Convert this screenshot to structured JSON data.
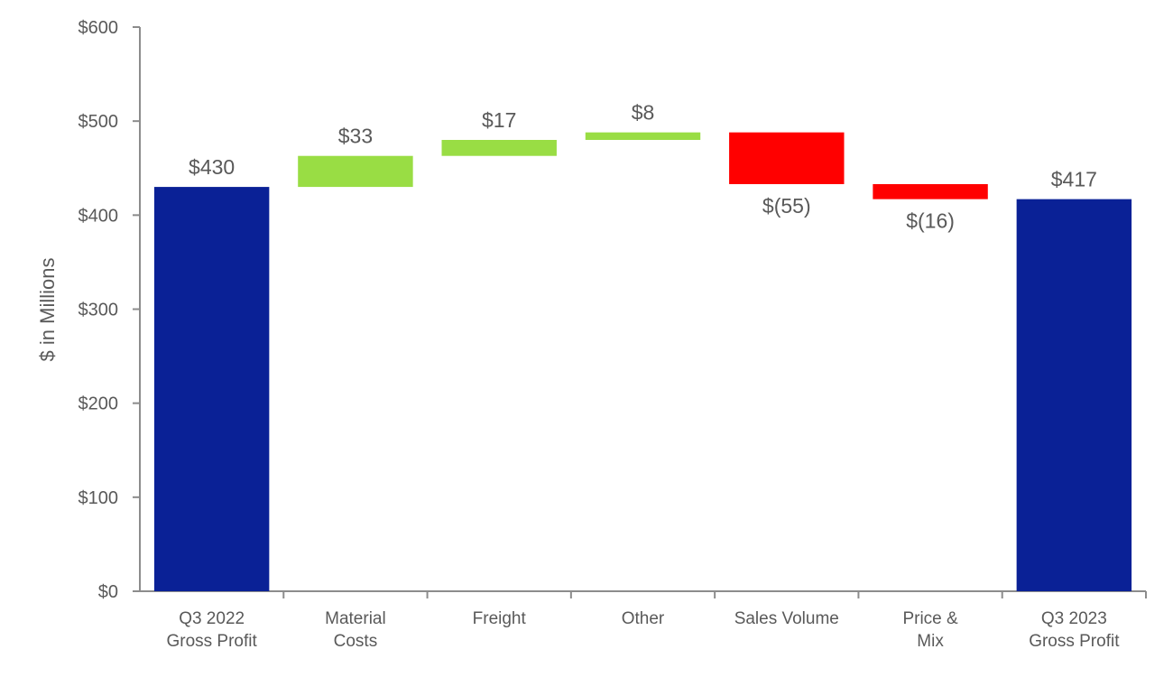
{
  "chart_data": {
    "type": "bar",
    "subtype": "waterfall",
    "title": "",
    "xlabel": "",
    "ylabel": "$ in Millions",
    "ylim": [
      0,
      600
    ],
    "yticks": [
      0,
      100,
      200,
      300,
      400,
      500,
      600
    ],
    "ytick_labels": [
      "$0",
      "$100",
      "$200",
      "$300",
      "$400",
      "$500",
      "$600"
    ],
    "categories": [
      [
        "Q3 2022",
        "Gross Profit"
      ],
      [
        "Material",
        "Costs"
      ],
      [
        "Freight"
      ],
      [
        "Other"
      ],
      [
        "Sales Volume"
      ],
      [
        "Price &",
        "Mix"
      ],
      [
        "Q3 2023",
        "Gross Profit"
      ]
    ],
    "steps": [
      {
        "kind": "total",
        "start": 0,
        "end": 430,
        "value": 430,
        "label": "$430"
      },
      {
        "kind": "increase",
        "start": 430,
        "end": 463,
        "value": 33,
        "label": "$33"
      },
      {
        "kind": "increase",
        "start": 463,
        "end": 480,
        "value": 17,
        "label": "$17"
      },
      {
        "kind": "increase",
        "start": 480,
        "end": 488,
        "value": 8,
        "label": "$8"
      },
      {
        "kind": "decrease",
        "start": 488,
        "end": 433,
        "value": -55,
        "label": "$(55)"
      },
      {
        "kind": "decrease",
        "start": 433,
        "end": 417,
        "value": -16,
        "label": "$(16)"
      },
      {
        "kind": "total",
        "start": 0,
        "end": 417,
        "value": 417,
        "label": "$417"
      }
    ],
    "colors": {
      "total": "#0A2196",
      "increase": "#99DD44",
      "decrease": "#FF0000",
      "axis": "#8C8C8C",
      "text": "#595959"
    }
  }
}
